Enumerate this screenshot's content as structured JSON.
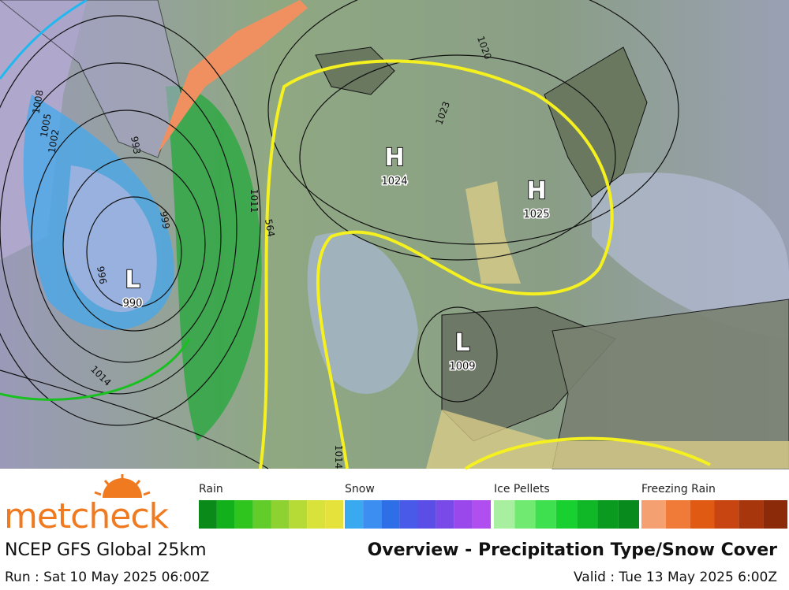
{
  "map": {
    "centers": [
      {
        "letter": "L",
        "value": 990
      },
      {
        "letter": "H",
        "value": 1024
      },
      {
        "letter": "H",
        "value": 1025
      },
      {
        "letter": "L",
        "value": 1009
      }
    ],
    "isobar_labels": [
      1008,
      1005,
      1002,
      999,
      996,
      993,
      1011,
      1014,
      1020,
      1023,
      1014,
      564
    ]
  },
  "legend": [
    {
      "label": "Rain",
      "colors": [
        "#0a8a18",
        "#12b01a",
        "#2fc41e",
        "#62cc2a",
        "#8ed232",
        "#b6da36",
        "#d8e23a",
        "#e6e23c"
      ]
    },
    {
      "label": "Snow",
      "colors": [
        "#3aaaf0",
        "#3c8ef0",
        "#2e6ee6",
        "#4a5ae8",
        "#5a4ee6",
        "#7a4ae8",
        "#9a48ec",
        "#b04ef0"
      ]
    },
    {
      "label": "Ice Pellets",
      "colors": [
        "#a8f0a0",
        "#70ea70",
        "#3ee050",
        "#18d030",
        "#10b828",
        "#0a9a20",
        "#088a1c"
      ]
    },
    {
      "label": "Freezing Rain",
      "colors": [
        "#f4a070",
        "#f07a38",
        "#e05a14",
        "#c84410",
        "#a8360c",
        "#8a2a08"
      ]
    }
  ],
  "footer": {
    "logo": "metcheck",
    "model": "NCEP GFS Global 25km",
    "title": "Overview - Precipitation Type/Snow Cover",
    "run": "Run : Sat 10 May 2025 06:00Z",
    "valid": "Valid : Tue 13 May 2025 6:00Z"
  }
}
